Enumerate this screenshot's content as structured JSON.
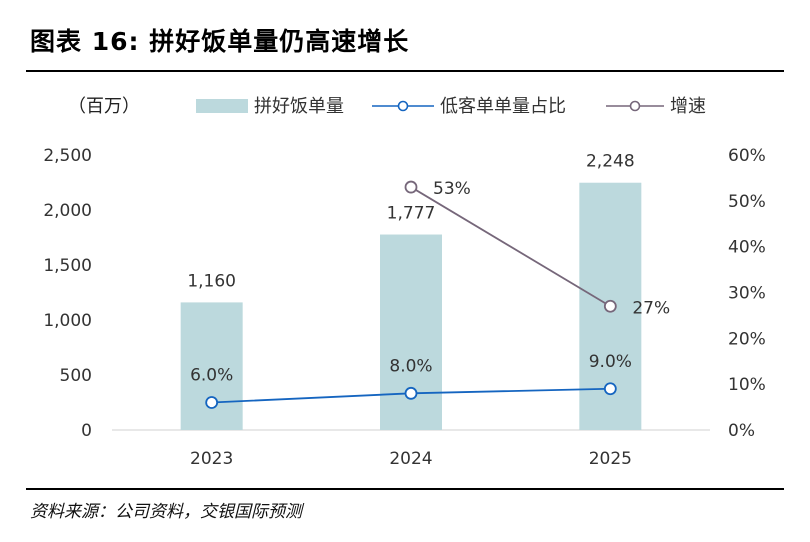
{
  "title": "图表 16: 拼好饭单量仍高速增长",
  "unit_label": "（百万）",
  "source": "资料来源：公司资料，交银国际预测",
  "colors": {
    "bar": "#bcd9dd",
    "share_line": "#1565c0",
    "growth_line": "#76677a",
    "axis_text": "#333333",
    "grid": "#d9d9d9"
  },
  "chart_data": {
    "type": "bar",
    "categories": [
      "2023",
      "2024",
      "2025"
    ],
    "series": [
      {
        "name": "拼好饭单量",
        "type": "bar",
        "axis": "left",
        "values": [
          1160,
          1777,
          2248
        ],
        "labels": [
          "1,160",
          "1,777",
          "2,248"
        ]
      },
      {
        "name": "低客单单量占比",
        "type": "line",
        "axis": "right",
        "values": [
          0.06,
          0.08,
          0.09
        ],
        "labels": [
          "6.0%",
          "8.0%",
          "9.0%"
        ]
      },
      {
        "name": "增速",
        "type": "line",
        "axis": "right",
        "values": [
          null,
          0.53,
          0.27
        ],
        "labels": [
          null,
          "53%",
          "27%"
        ]
      }
    ],
    "y_left": {
      "min": 0,
      "max": 2500,
      "ticks": [
        0,
        500,
        1000,
        1500,
        2000,
        2500
      ],
      "tick_labels": [
        "0",
        "500",
        "1,000",
        "1,500",
        "2,000",
        "2,500"
      ]
    },
    "y_right": {
      "min": 0,
      "max": 0.6,
      "ticks": [
        0,
        0.1,
        0.2,
        0.3,
        0.4,
        0.5,
        0.6
      ],
      "tick_labels": [
        "0%",
        "10%",
        "20%",
        "30%",
        "40%",
        "50%",
        "60%"
      ]
    },
    "grid": false,
    "legend": "top"
  }
}
